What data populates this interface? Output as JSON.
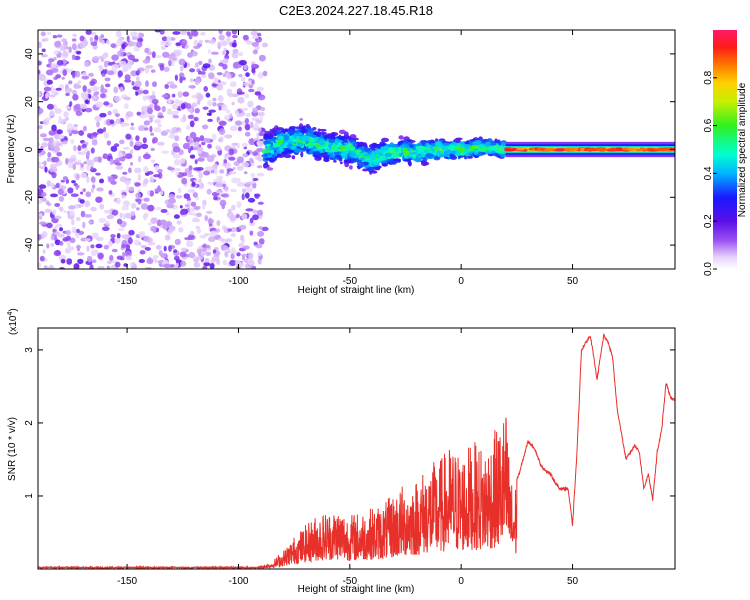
{
  "figure": {
    "title": "C2E3.2024.227.18.45.R18"
  },
  "colors": {
    "axis": "#000000",
    "snr_line": "#e8302a",
    "scatter": "#8a3cf0",
    "scatter_light": "#c9a2f4"
  },
  "chart_data": [
    {
      "type": "heatmap",
      "xlabel": "Height of straight line (km)",
      "ylabel": "Frequency (Hz)",
      "xlim": [
        -190,
        96
      ],
      "ylim": [
        -50,
        50
      ],
      "xticks": [
        -150,
        -100,
        -50,
        0,
        50
      ],
      "yticks": [
        -40,
        -20,
        0,
        20,
        40
      ],
      "colorbar": {
        "label": "Normalized spectral amplitude",
        "range": [
          0,
          1
        ],
        "ticks": [
          0.0,
          0.2,
          0.4,
          0.6,
          0.8
        ],
        "tick_labels": [
          "0.0",
          "0.2",
          "0.4",
          "0.6",
          "0.8"
        ],
        "colormap": "rainbow (white→purple→blue→cyan→green→yellow→orange→red→magenta)"
      },
      "regions": [
        {
          "name": "noise",
          "x_range": [
            -190,
            -88
          ],
          "freq_range": [
            -50,
            50
          ],
          "amplitude_range": [
            0.0,
            0.2
          ]
        },
        {
          "name": "transition",
          "x_range": [
            -88,
            20
          ],
          "center_freq": 0,
          "freq_spread": 10,
          "amplitude_range": [
            0.1,
            0.5
          ]
        },
        {
          "name": "tone",
          "x_range": [
            20,
            96
          ],
          "center_freq": 0,
          "freq_spread": 2,
          "amplitude_range": [
            0.6,
            1.0
          ]
        }
      ],
      "centerline": {
        "x": [
          -88,
          -80,
          -70,
          -60,
          -50,
          -45,
          -40,
          -35,
          -30,
          -20,
          -10,
          0,
          10,
          20,
          96
        ],
        "freq": [
          0,
          3,
          4,
          1,
          0,
          -3,
          -4,
          -2,
          -1,
          -1,
          0,
          0,
          1,
          0,
          0
        ]
      }
    },
    {
      "type": "line",
      "xlabel": "Height of straight line (km)",
      "ylabel": "SNR (10 * v/v)",
      "yscale_label": "(x10",
      "yscale_exp": "4",
      "yscale_close": ")",
      "xlim": [
        -190,
        96
      ],
      "ylim": [
        0,
        3.3
      ],
      "xticks": [
        -150,
        -100,
        -50,
        0,
        50
      ],
      "yticks": [
        1,
        2,
        3
      ],
      "series": [
        {
          "x": [
            -190,
            -150,
            -100,
            -90,
            -85,
            -80,
            -75,
            -70,
            -65,
            -60,
            -55,
            -50,
            -45,
            -40,
            -35,
            -30,
            -25,
            -20,
            -15,
            -10,
            -5,
            0,
            5,
            10,
            15,
            20,
            23,
            26,
            30,
            33,
            36,
            40,
            44,
            48,
            50,
            52,
            54,
            58,
            61,
            64,
            66,
            68,
            70,
            74,
            78,
            80,
            82,
            84,
            86,
            88,
            90,
            92,
            94,
            96
          ],
          "envelope": [
            0.02,
            0.02,
            0.03,
            0.05,
            0.1,
            0.25,
            0.45,
            0.6,
            0.75,
            0.8,
            0.85,
            0.75,
            0.8,
            0.85,
            0.9,
            1.05,
            1.2,
            1.25,
            1.45,
            1.5,
            1.7,
            1.6,
            1.75,
            1.7,
            1.9,
            2.2,
            1.1,
            1.3,
            1.75,
            1.65,
            1.4,
            1.3,
            1.1,
            1.1,
            0.6,
            1.6,
            3.0,
            3.2,
            2.6,
            3.2,
            3.1,
            2.9,
            2.2,
            1.5,
            1.7,
            1.6,
            1.1,
            1.3,
            0.95,
            1.6,
            1.9,
            2.55,
            2.35,
            2.3
          ]
        }
      ]
    }
  ]
}
